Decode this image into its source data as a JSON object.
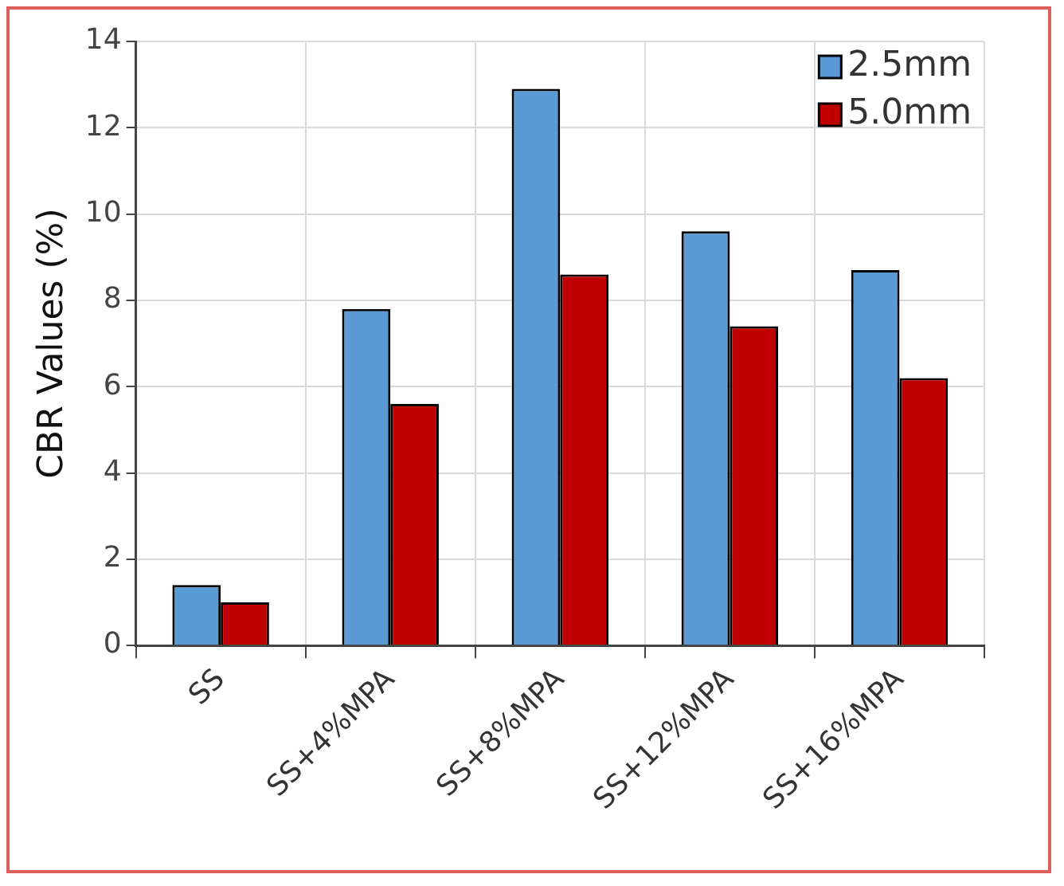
{
  "chart_data": {
    "type": "bar",
    "ylabel": "CBR Values (%)",
    "categories": [
      "SS",
      "SS+4%MPA",
      "SS+8%MPA",
      "SS+12%MPA",
      "SS+16%MPA"
    ],
    "series": [
      {
        "name": "2.5mm",
        "color": "#5b9bd5",
        "values": [
          1.4,
          7.8,
          12.9,
          9.6,
          8.7
        ]
      },
      {
        "name": "5.0mm",
        "color": "#c00000",
        "values": [
          1.0,
          5.6,
          8.6,
          7.4,
          6.2
        ]
      }
    ],
    "ylim": [
      0,
      14
    ],
    "yticks": [
      0,
      2,
      4,
      6,
      8,
      10,
      12,
      14
    ],
    "grid": true,
    "legend": "top right"
  }
}
